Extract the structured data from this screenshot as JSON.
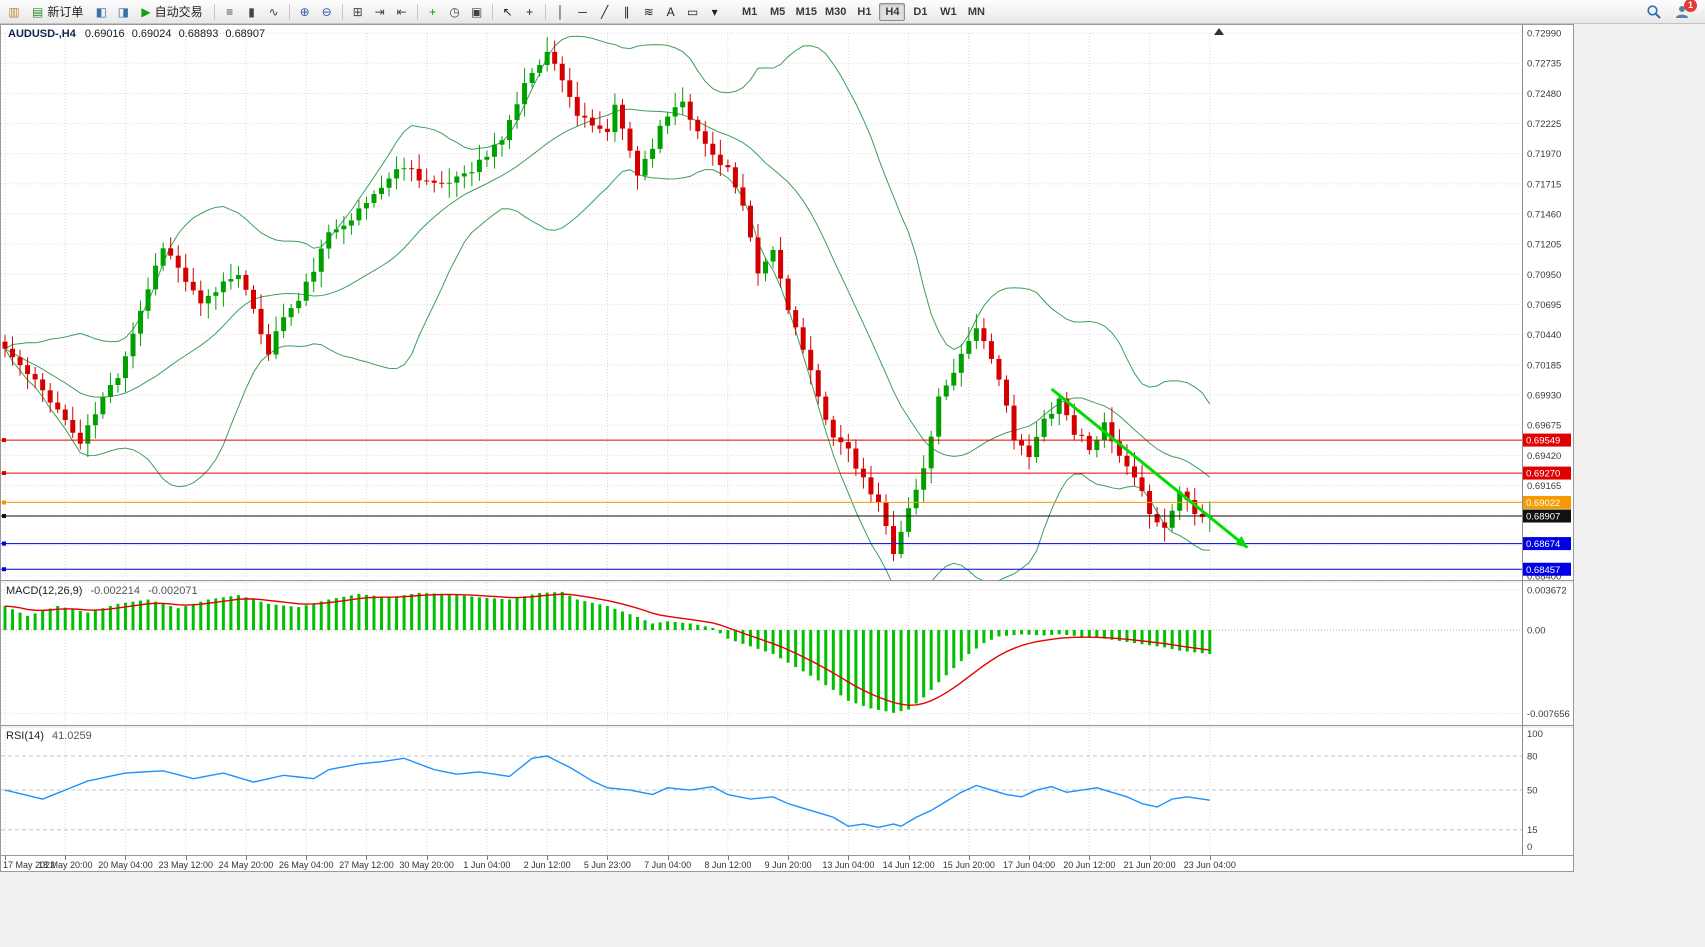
{
  "toolbar": {
    "groups": [
      {
        "items": [
          {
            "name": "charts-toolbar-icon",
            "glyph": "▥",
            "color": "#C08A2D"
          },
          {
            "name": "new-order-button",
            "glyph": "▤",
            "color": "#2F8F2F",
            "label": "新订单"
          },
          {
            "name": "market-watch-icon",
            "glyph": "◧",
            "color": "#3A6EA5"
          },
          {
            "name": "navigator-icon",
            "glyph": "◨",
            "color": "#3A6EA5"
          },
          {
            "name": "auto-trading-button",
            "glyph": "▶",
            "color": "#12A012",
            "label": "自动交易"
          }
        ]
      },
      {
        "items": [
          {
            "name": "bar-chart-icon",
            "glyph": "≡",
            "color": "#444444"
          },
          {
            "name": "candlestick-chart-icon",
            "glyph": "▮",
            "color": "#444444"
          },
          {
            "name": "line-chart-icon",
            "glyph": "∿",
            "color": "#444444"
          }
        ]
      },
      {
        "items": [
          {
            "name": "zoom-in-icon",
            "glyph": "⊕",
            "color": "#35589E"
          },
          {
            "name": "zoom-out-icon",
            "glyph": "⊖",
            "color": "#35589E"
          }
        ]
      },
      {
        "items": [
          {
            "name": "tile-windows-icon",
            "glyph": "⊞",
            "color": "#444444"
          },
          {
            "name": "auto-scroll-icon",
            "glyph": "⇥",
            "color": "#444444"
          },
          {
            "name": "chart-shift-icon",
            "glyph": "⇤",
            "color": "#444444"
          }
        ]
      },
      {
        "items": [
          {
            "name": "indicators-icon",
            "glyph": "+",
            "color": "#0A9A0A"
          },
          {
            "name": "periods-icon",
            "glyph": "◷",
            "color": "#444444"
          },
          {
            "name": "templates-icon",
            "glyph": "▣",
            "color": "#444444"
          }
        ]
      },
      {
        "items": [
          {
            "name": "cursor-icon",
            "glyph": "↖",
            "color": "#222222"
          },
          {
            "name": "crosshair-icon",
            "glyph": "+",
            "color": "#222222"
          }
        ]
      },
      {
        "items": [
          {
            "name": "vertical-line-icon",
            "glyph": "│",
            "color": "#222222"
          },
          {
            "name": "horizontal-line-icon",
            "glyph": "─",
            "color": "#222222"
          },
          {
            "name": "trendline-icon",
            "glyph": "╱",
            "color": "#222222"
          },
          {
            "name": "channel-icon",
            "glyph": "∥",
            "color": "#222222"
          },
          {
            "name": "fibonacci-icon",
            "glyph": "≋",
            "color": "#222222"
          },
          {
            "name": "text-tool-icon",
            "glyph": "A",
            "color": "#222222"
          },
          {
            "name": "label-tool-icon",
            "glyph": "▭",
            "color": "#222222"
          },
          {
            "name": "shapes-dropdown-icon",
            "glyph": "▾",
            "color": "#222222"
          }
        ]
      }
    ],
    "timeframes": [
      {
        "label": "M1"
      },
      {
        "label": "M5"
      },
      {
        "label": "M15"
      },
      {
        "label": "M30"
      },
      {
        "label": "H1"
      },
      {
        "label": "H4",
        "active": true
      },
      {
        "label": "D1"
      },
      {
        "label": "W1"
      },
      {
        "label": "MN"
      }
    ],
    "right": {
      "badge": "1"
    }
  },
  "chart": {
    "symbol_period": "AUDUSD-,H4",
    "ohlc": {
      "open": "0.69016",
      "high": "0.69024",
      "low": "0.68893",
      "close": "0.68907"
    },
    "colors": {
      "bull": "#00A000",
      "bear": "#D40000",
      "bands": "#3E9E5B",
      "macd_hist": "#00C000",
      "macd_signal": "#E60000",
      "rsi_line": "#1E90FF",
      "grid": "#DADADA",
      "trend": "#00DC00"
    },
    "price_axis_labels": [
      "0.68400",
      "0.68655",
      "0.68910",
      "0.69165",
      "0.69420",
      "0.69675",
      "0.69930",
      "0.70185",
      "0.70440",
      "0.70695",
      "0.70950",
      "0.71205",
      "0.71460",
      "0.71715",
      "0.71970",
      "0.72225",
      "0.72480",
      "0.72735",
      "0.72990"
    ],
    "hlines": [
      {
        "label": "0.69549",
        "price": 0.69549,
        "color": "#E00000"
      },
      {
        "label": "0.69270",
        "price": 0.6927,
        "color": "#E00000"
      },
      {
        "label": "0.69022",
        "price": 0.69022,
        "color": "#F59B00"
      },
      {
        "label": "0.68907",
        "price": 0.68907,
        "color": "#111111"
      },
      {
        "label": "0.68674",
        "price": 0.68674,
        "color": "#0000E6"
      },
      {
        "label": "0.68457",
        "price": 0.68457,
        "color": "#0000E6"
      }
    ],
    "trendline": {
      "from_index": 139,
      "from_price": 0.6998,
      "to_index": 165,
      "to_price": 0.6864,
      "color": "#00DC00"
    }
  },
  "chart_data": {
    "type": "candlestick",
    "symbol": "AUDUSD",
    "timeframe": "H4",
    "bars": 161,
    "price_range": [
      0.684,
      0.7299
    ],
    "close_waypoints": [
      [
        0,
        0.7032
      ],
      [
        3,
        0.701
      ],
      [
        6,
        0.699
      ],
      [
        10,
        0.6952
      ],
      [
        13,
        0.699
      ],
      [
        15,
        0.701
      ],
      [
        18,
        0.7065
      ],
      [
        21,
        0.712
      ],
      [
        23,
        0.71
      ],
      [
        26,
        0.7068
      ],
      [
        29,
        0.7088
      ],
      [
        31,
        0.7098
      ],
      [
        33,
        0.7062
      ],
      [
        35,
        0.703
      ],
      [
        37,
        0.706
      ],
      [
        39,
        0.7072
      ],
      [
        41,
        0.71
      ],
      [
        43,
        0.7128
      ],
      [
        45,
        0.714
      ],
      [
        47,
        0.7148
      ],
      [
        50,
        0.717
      ],
      [
        53,
        0.7188
      ],
      [
        55,
        0.7178
      ],
      [
        58,
        0.7168
      ],
      [
        60,
        0.7178
      ],
      [
        62,
        0.7185
      ],
      [
        64,
        0.7195
      ],
      [
        66,
        0.721
      ],
      [
        68,
        0.724
      ],
      [
        70,
        0.7268
      ],
      [
        72,
        0.7282
      ],
      [
        74,
        0.7262
      ],
      [
        76,
        0.723
      ],
      [
        78,
        0.7218
      ],
      [
        80,
        0.7216
      ],
      [
        81,
        0.7235
      ],
      [
        83,
        0.72
      ],
      [
        84,
        0.718
      ],
      [
        86,
        0.7205
      ],
      [
        88,
        0.723
      ],
      [
        90,
        0.7244
      ],
      [
        92,
        0.7214
      ],
      [
        94,
        0.7196
      ],
      [
        96,
        0.7185
      ],
      [
        98,
        0.715
      ],
      [
        100,
        0.7095
      ],
      [
        102,
        0.7115
      ],
      [
        104,
        0.7068
      ],
      [
        106,
        0.703
      ],
      [
        108,
        0.699
      ],
      [
        110,
        0.696
      ],
      [
        112,
        0.6944
      ],
      [
        114,
        0.692
      ],
      [
        116,
        0.69
      ],
      [
        118,
        0.6862
      ],
      [
        120,
        0.6896
      ],
      [
        122,
        0.693
      ],
      [
        124,
        0.699
      ],
      [
        126,
        0.7015
      ],
      [
        129,
        0.7052
      ],
      [
        131,
        0.702
      ],
      [
        133,
        0.6988
      ],
      [
        134,
        0.6955
      ],
      [
        136,
        0.694
      ],
      [
        138,
        0.6972
      ],
      [
        140,
        0.699
      ],
      [
        142,
        0.6962
      ],
      [
        144,
        0.695
      ],
      [
        146,
        0.6966
      ],
      [
        148,
        0.694
      ],
      [
        150,
        0.692
      ],
      [
        152,
        0.6896
      ],
      [
        154,
        0.688
      ],
      [
        156,
        0.6912
      ],
      [
        158,
        0.6896
      ],
      [
        160,
        0.6891
      ]
    ],
    "macd": {
      "label": "MACD(12,26,9)",
      "values": [
        "-0.002214",
        "-0.002071"
      ],
      "axis_labels": [
        "0.003672",
        "0.00",
        "-0.007656"
      ],
      "axis_values": [
        0.003672,
        0,
        -0.007656
      ],
      "waypoints": [
        [
          0,
          0.0022
        ],
        [
          3,
          0.0013
        ],
        [
          7,
          0.0022
        ],
        [
          11,
          0.0016
        ],
        [
          15,
          0.0024
        ],
        [
          19,
          0.0028
        ],
        [
          23,
          0.002
        ],
        [
          27,
          0.0028
        ],
        [
          31,
          0.0032
        ],
        [
          35,
          0.0024
        ],
        [
          39,
          0.0021
        ],
        [
          43,
          0.0028
        ],
        [
          47,
          0.0033
        ],
        [
          51,
          0.003
        ],
        [
          55,
          0.0034
        ],
        [
          59,
          0.0033
        ],
        [
          63,
          0.003
        ],
        [
          67,
          0.0028
        ],
        [
          71,
          0.0034
        ],
        [
          74,
          0.0035
        ],
        [
          76,
          0.0028
        ],
        [
          80,
          0.0022
        ],
        [
          84,
          0.0012
        ],
        [
          86,
          0.0006
        ],
        [
          88,
          0.0008
        ],
        [
          91,
          0.0006
        ],
        [
          94,
          0.0002
        ],
        [
          96,
          -0.0008
        ],
        [
          99,
          -0.0015
        ],
        [
          102,
          -0.0022
        ],
        [
          104,
          -0.003
        ],
        [
          107,
          -0.0042
        ],
        [
          110,
          -0.0055
        ],
        [
          112,
          -0.0065
        ],
        [
          115,
          -0.0072
        ],
        [
          118,
          -0.0076
        ],
        [
          120,
          -0.0073
        ],
        [
          122,
          -0.0062
        ],
        [
          124,
          -0.0048
        ],
        [
          126,
          -0.0035
        ],
        [
          128,
          -0.0022
        ],
        [
          130,
          -0.0012
        ],
        [
          132,
          -0.0006
        ],
        [
          135,
          -0.0004
        ],
        [
          138,
          -0.0005
        ],
        [
          140,
          -0.0004
        ],
        [
          143,
          -0.0006
        ],
        [
          146,
          -0.0008
        ],
        [
          148,
          -0.001
        ],
        [
          151,
          -0.0013
        ],
        [
          154,
          -0.0016
        ],
        [
          156,
          -0.0019
        ],
        [
          160,
          -0.0022
        ]
      ]
    },
    "rsi": {
      "label": "RSI(14)",
      "value": "41.0259",
      "axis_labels": [
        "100",
        "80",
        "50",
        "15",
        "0"
      ],
      "levels": [
        100,
        80,
        50,
        15,
        0
      ],
      "waypoints": [
        [
          0,
          50
        ],
        [
          5,
          42
        ],
        [
          11,
          58
        ],
        [
          16,
          65
        ],
        [
          21,
          67
        ],
        [
          25,
          60
        ],
        [
          29,
          65
        ],
        [
          33,
          57
        ],
        [
          37,
          63
        ],
        [
          41,
          60
        ],
        [
          43,
          68
        ],
        [
          47,
          73
        ],
        [
          50,
          75
        ],
        [
          53,
          78
        ],
        [
          57,
          68
        ],
        [
          60,
          64
        ],
        [
          63,
          66
        ],
        [
          67,
          62
        ],
        [
          70,
          78
        ],
        [
          72,
          80
        ],
        [
          75,
          70
        ],
        [
          78,
          58
        ],
        [
          80,
          52
        ],
        [
          83,
          50
        ],
        [
          86,
          46
        ],
        [
          88,
          52
        ],
        [
          91,
          50
        ],
        [
          94,
          53
        ],
        [
          96,
          46
        ],
        [
          99,
          42
        ],
        [
          102,
          44
        ],
        [
          104,
          38
        ],
        [
          107,
          32
        ],
        [
          110,
          26
        ],
        [
          112,
          18
        ],
        [
          114,
          20
        ],
        [
          116,
          17
        ],
        [
          118,
          20
        ],
        [
          119,
          18
        ],
        [
          121,
          26
        ],
        [
          123,
          32
        ],
        [
          125,
          40
        ],
        [
          127,
          48
        ],
        [
          129,
          54
        ],
        [
          131,
          50
        ],
        [
          133,
          46
        ],
        [
          135,
          44
        ],
        [
          137,
          50
        ],
        [
          139,
          53
        ],
        [
          141,
          48
        ],
        [
          143,
          50
        ],
        [
          145,
          52
        ],
        [
          147,
          48
        ],
        [
          149,
          44
        ],
        [
          151,
          38
        ],
        [
          153,
          35
        ],
        [
          155,
          42
        ],
        [
          157,
          44
        ],
        [
          160,
          41
        ]
      ]
    }
  },
  "time_axis": [
    "17 May 2022",
    "18 May 20:00",
    "20 May 04:00",
    "23 May 12:00",
    "24 May 20:00",
    "26 May 04:00",
    "27 May 12:00",
    "30 May 20:00",
    "1 Jun 04:00",
    "2 Jun 12:00",
    "5 Jun 23:00",
    "7 Jun 04:00",
    "8 Jun 12:00",
    "9 Jun 20:00",
    "13 Jun 04:00",
    "14 Jun 12:00",
    "15 Jun 20:00",
    "17 Jun 04:00",
    "20 Jun 12:00",
    "21 Jun 20:00",
    "23 Jun 04:00"
  ]
}
